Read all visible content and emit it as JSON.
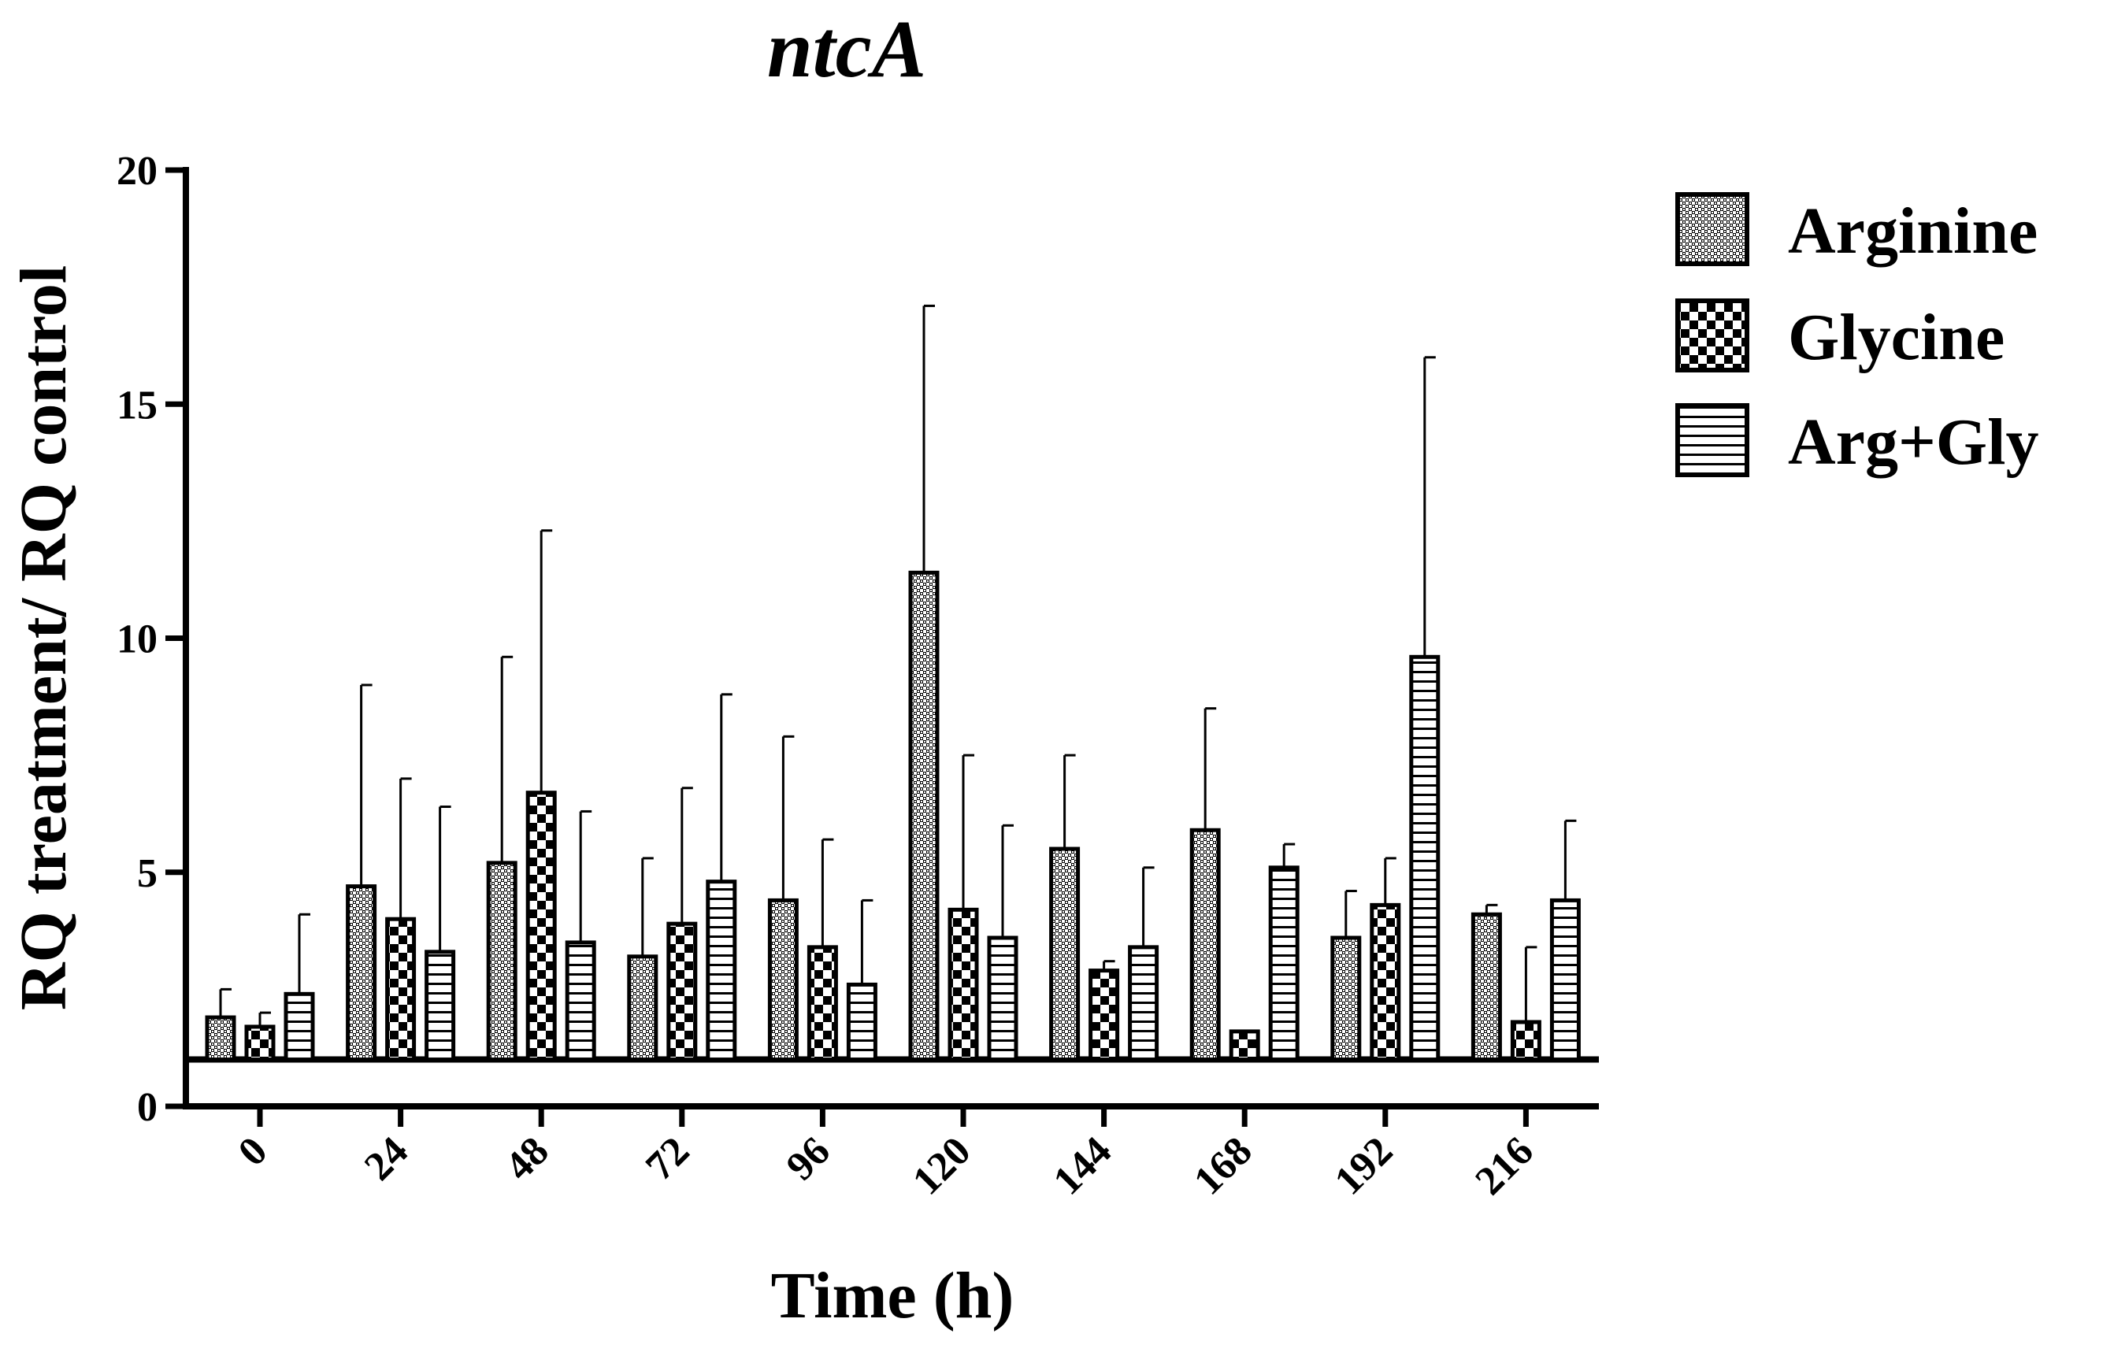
{
  "chart_data": {
    "type": "bar",
    "title": "ntcA",
    "xlabel": "Time (h)",
    "ylabel": "RQ treatment/ RQ control",
    "categories": [
      "0",
      "24",
      "48",
      "72",
      "96",
      "120",
      "144",
      "168",
      "192",
      "216"
    ],
    "ylim": [
      0,
      20
    ],
    "yticks": [
      "0",
      "5",
      "10",
      "15",
      "20"
    ],
    "reference_line": 1,
    "series": [
      {
        "name": "Arginine",
        "pattern": "dots",
        "values": [
          1.9,
          4.7,
          5.2,
          3.2,
          4.4,
          11.4,
          5.5,
          5.9,
          3.6,
          4.1
        ],
        "errors": [
          0.6,
          4.3,
          4.4,
          2.1,
          3.5,
          5.7,
          2.0,
          2.6,
          1.0,
          0.2
        ]
      },
      {
        "name": "Glycine",
        "pattern": "checker",
        "values": [
          1.7,
          4.0,
          6.7,
          3.9,
          3.4,
          4.2,
          2.9,
          1.6,
          4.3,
          1.8
        ],
        "errors": [
          0.3,
          3.0,
          5.6,
          2.9,
          2.3,
          3.3,
          0.2,
          0.0,
          1.0,
          1.6
        ]
      },
      {
        "name": "Arg+Gly",
        "pattern": "hlines",
        "values": [
          2.4,
          3.3,
          3.5,
          4.8,
          2.6,
          3.6,
          3.4,
          5.1,
          9.6,
          4.4
        ],
        "errors": [
          1.7,
          3.1,
          2.8,
          4.0,
          1.8,
          2.4,
          1.7,
          0.5,
          6.4,
          1.7
        ]
      }
    ]
  }
}
